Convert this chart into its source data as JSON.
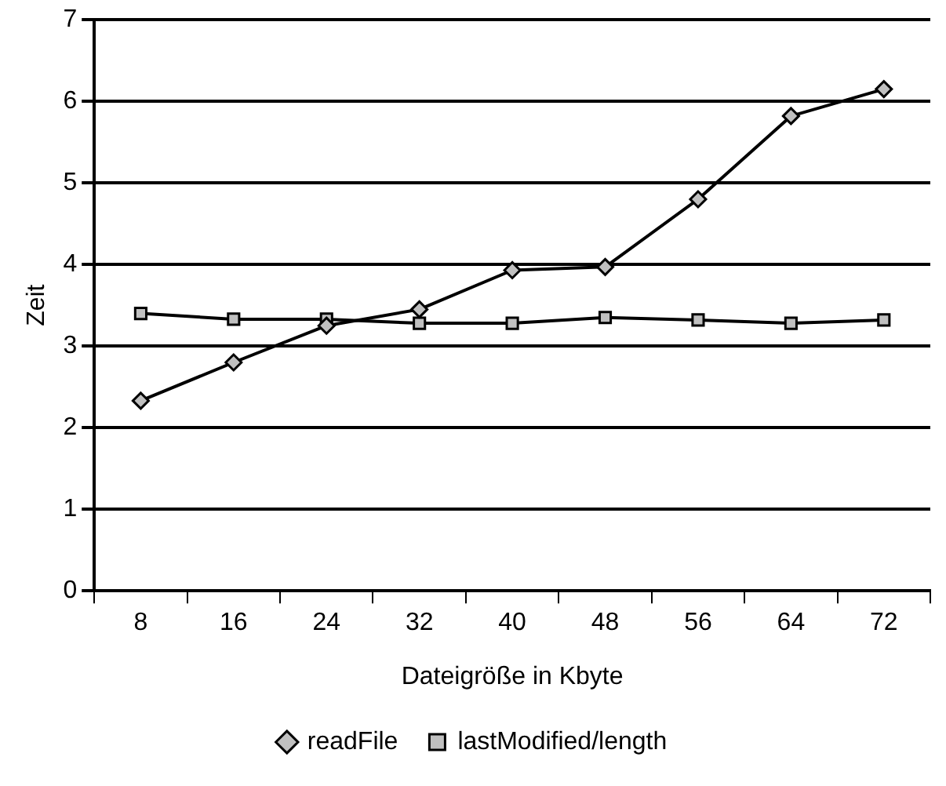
{
  "chart_data": {
    "type": "line",
    "xlabel": "Dateigröße in Kbyte",
    "ylabel": "Zeit",
    "categories": [
      "8",
      "16",
      "24",
      "32",
      "40",
      "48",
      "56",
      "64",
      "72"
    ],
    "series": [
      {
        "name": "readFile",
        "color": "#000000",
        "marker": "diamond",
        "values": [
          2.33,
          2.8,
          3.25,
          3.45,
          3.93,
          3.97,
          4.8,
          5.82,
          6.15
        ]
      },
      {
        "name": "lastModified/length",
        "color": "#000000",
        "marker": "square",
        "values": [
          3.4,
          3.33,
          3.33,
          3.28,
          3.28,
          3.35,
          3.32,
          3.28,
          3.32
        ]
      }
    ],
    "ylim": [
      0,
      7
    ],
    "yticks": [
      0,
      1,
      2,
      3,
      4,
      5,
      6,
      7
    ],
    "grid": "y",
    "legend": "bottom",
    "line_style": "solid"
  }
}
